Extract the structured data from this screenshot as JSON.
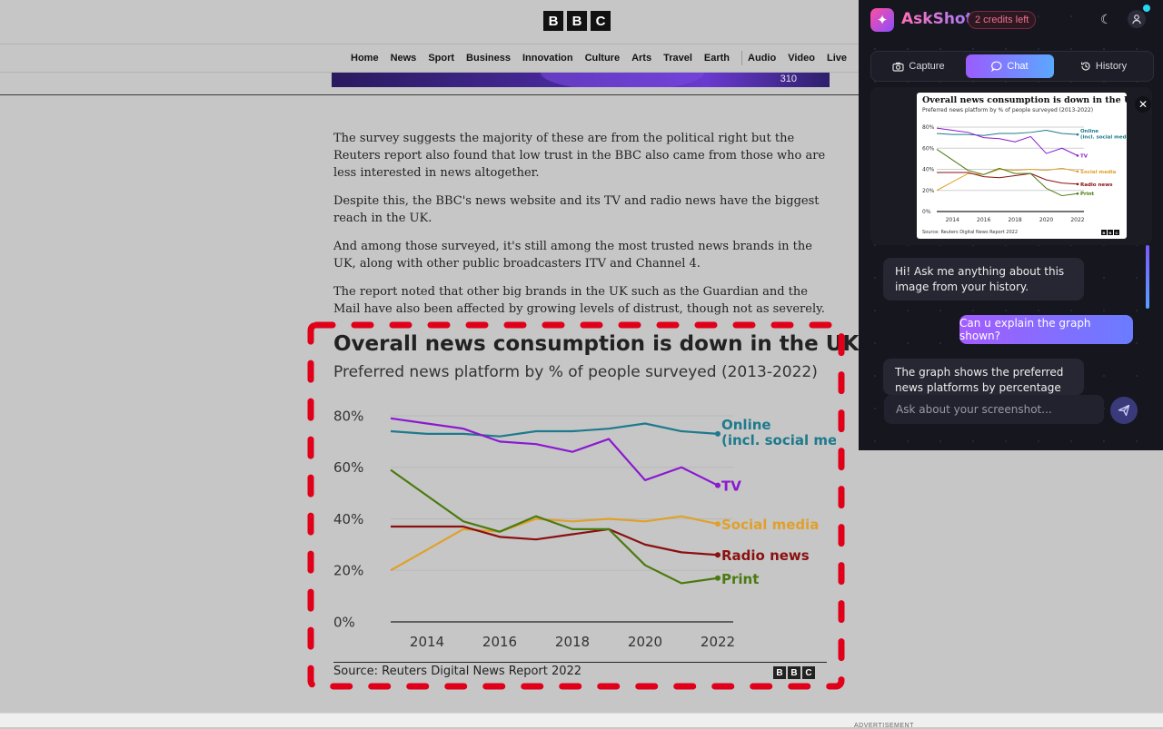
{
  "site": {
    "logo": [
      "B",
      "B",
      "C"
    ],
    "nav": [
      "Home",
      "News",
      "Sport",
      "Business",
      "Innovation",
      "Culture",
      "Arts",
      "Travel",
      "Earth",
      "Audio",
      "Video",
      "Live"
    ],
    "hero_mark": "310"
  },
  "article": {
    "paragraphs": [
      "The survey suggests the majority of these are from the political right but the Reuters report also found that low trust in the BBC also came from those who are less interested in news altogether.",
      "Despite this, the BBC's news website and its TV and radio news have the biggest reach in the UK.",
      "And among those surveyed, it's still among the most trusted news brands in the UK, along with other public broadcasters ITV and Channel 4.",
      "The report noted that other big brands in the UK such as the Guardian and the Mail have also been affected by growing levels of distrust, though not as severely."
    ]
  },
  "chart_data": {
    "type": "line",
    "title": "Overall news consumption is down in the UK",
    "subtitle": "Preferred news platform by % of people surveyed (2013-2022)",
    "x": [
      2013,
      2014,
      2015,
      2016,
      2017,
      2018,
      2019,
      2020,
      2021,
      2022
    ],
    "xticks": [
      "2014",
      "2016",
      "2018",
      "2020",
      "2022"
    ],
    "yticks": [
      "0%",
      "20%",
      "40%",
      "60%",
      "80%"
    ],
    "ylim": [
      0,
      80
    ],
    "series": [
      {
        "name": "Online (incl. social media)",
        "color": "#1e7a8c",
        "values": [
          74,
          73,
          73,
          72,
          74,
          74,
          75,
          77,
          74,
          73
        ]
      },
      {
        "name": "TV",
        "color": "#8a1ad0",
        "values": [
          79,
          77,
          75,
          70,
          69,
          66,
          71,
          55,
          60,
          53
        ]
      },
      {
        "name": "Social media",
        "color": "#e0a02a",
        "values": [
          20,
          28,
          36,
          35,
          40,
          39,
          40,
          39,
          41,
          38
        ]
      },
      {
        "name": "Radio news",
        "color": "#8b1010",
        "values": [
          37,
          37,
          37,
          33,
          32,
          34,
          36,
          30,
          27,
          26
        ]
      },
      {
        "name": "Print",
        "color": "#4a7a10",
        "values": [
          59,
          49,
          39,
          35,
          41,
          36,
          36,
          22,
          15,
          17
        ]
      }
    ],
    "source": "Source: Reuters Digital News Report 2022",
    "logo": [
      "B",
      "B",
      "C"
    ],
    "grid": true
  },
  "panel": {
    "app_name": "AskShot",
    "credits": "2 credits left",
    "tabs": [
      "Capture",
      "Chat",
      "History"
    ],
    "active_tab": "Chat",
    "messages": [
      {
        "role": "bot",
        "text": "Hi! Ask me anything about this image from your history."
      },
      {
        "role": "user",
        "text": "Can u explain the graph shown?"
      },
      {
        "role": "bot",
        "text": "The graph shows the preferred news platforms by percentage of people"
      }
    ],
    "input_placeholder": "Ask about your screenshot...",
    "preview": {
      "title": "Overall news consumption is down in the UK",
      "subtitle": "Preferred news platform by % of people surveyed (2013-2022)",
      "labels": [
        "Online (incl. social media)",
        "TV",
        "Social media",
        "Radio news",
        "Print"
      ],
      "source": "Source: Reuters Digital News Report 2022"
    }
  },
  "bottom": {
    "ad_label": "ADVERTISEMENT"
  }
}
